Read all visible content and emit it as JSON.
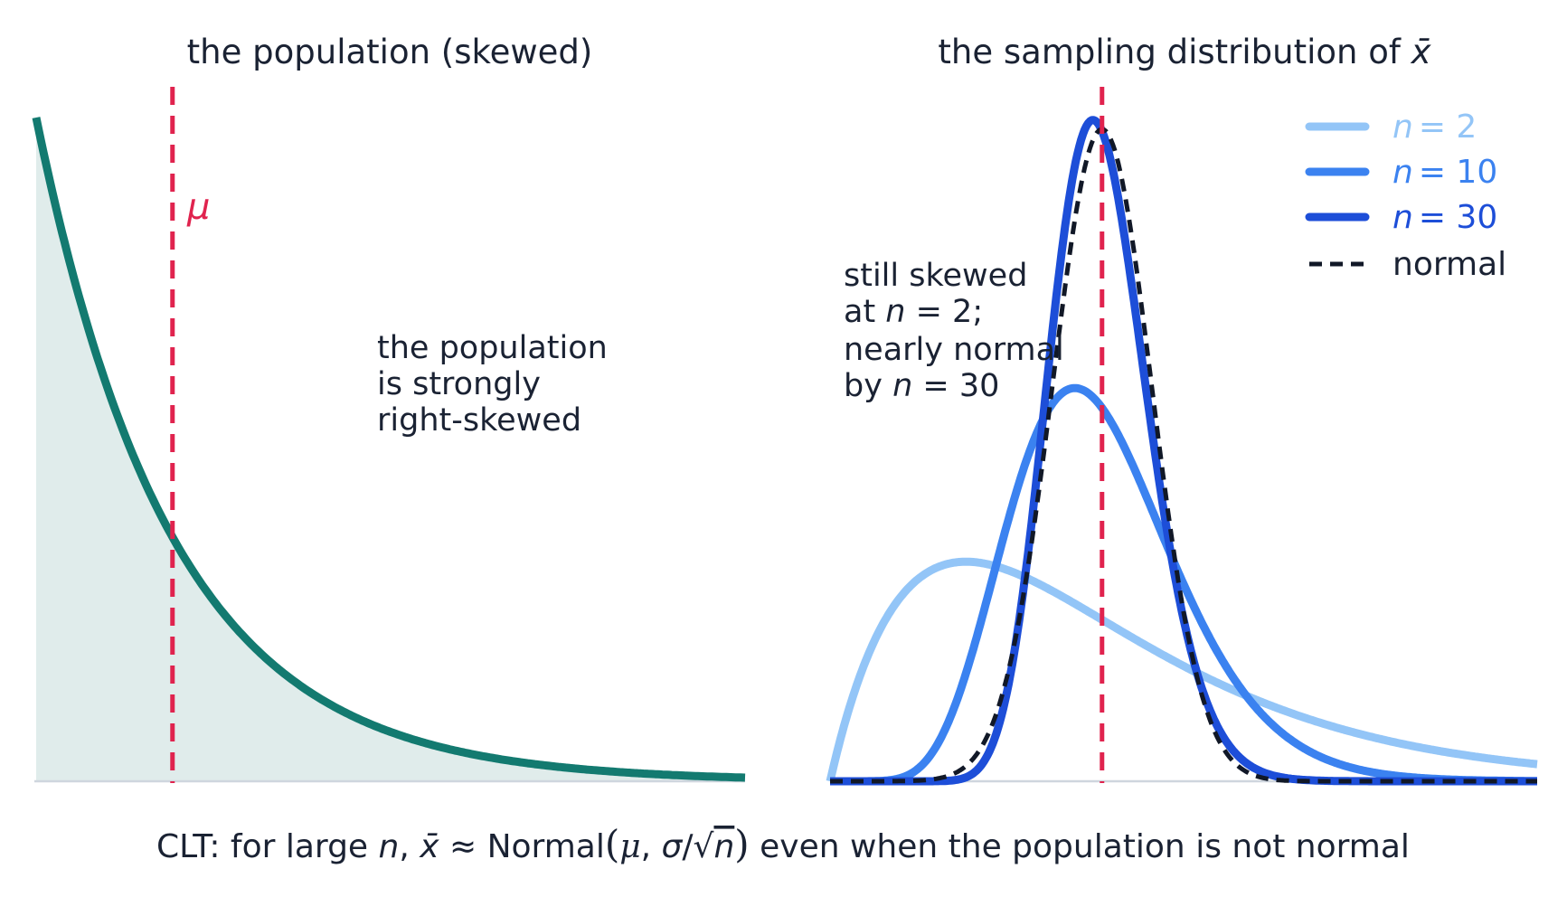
{
  "chart_data": [
    {
      "type": "area",
      "title": "the population (skewed)",
      "distribution": "exponential",
      "rate": 1,
      "x_range": [
        0,
        5.2
      ],
      "mean_marker": {
        "x": 1,
        "label": "μ"
      },
      "annotation": [
        "the population",
        "is strongly",
        "right-skewed"
      ],
      "colors": {
        "line": "#137a70",
        "fill": "#e0eceb",
        "mean": "#e0234e",
        "axis": "#cfd6de"
      }
    },
    {
      "type": "line",
      "title_prefix": "the sampling distribution of ",
      "title_symbol": "x̄",
      "x_range": [
        0,
        2.6
      ],
      "mean_marker": {
        "x": 1
      },
      "series": [
        {
          "name": "n = 2",
          "n_label": "n",
          "n_value": "= 2",
          "n": 2,
          "color": "#93c5f7",
          "style": "solid"
        },
        {
          "name": "n = 10",
          "n_label": "n",
          "n_value": "= 10",
          "n": 10,
          "color": "#3b82f0",
          "style": "solid"
        },
        {
          "name": "n = 30",
          "n_label": "n",
          "n_value": "= 30",
          "n": 30,
          "color": "#1d4ed8",
          "style": "solid"
        },
        {
          "name": "normal",
          "color": "#111827",
          "style": "dashed"
        }
      ],
      "legend_position": "top-right",
      "annotation": {
        "line1": "still skewed",
        "line2_prefix": "at ",
        "line2_var": "n",
        "line2_suffix": " = 2;",
        "line3": "nearly normal",
        "line4_prefix": "by ",
        "line4_var": "n",
        "line4_suffix": " = 30"
      }
    }
  ],
  "caption": {
    "prefix": "CLT: for large ",
    "var_n": "n",
    "comma": ", ",
    "xbar": "x̄",
    "approx": " ≈ Normal",
    "open": "(",
    "mu": "μ",
    "sep": ",  ",
    "sigma": "σ",
    "slash": "/",
    "sqrt": "√",
    "sqrt_n": "n",
    "close": ")",
    "suffix": " even when the population is not normal"
  }
}
